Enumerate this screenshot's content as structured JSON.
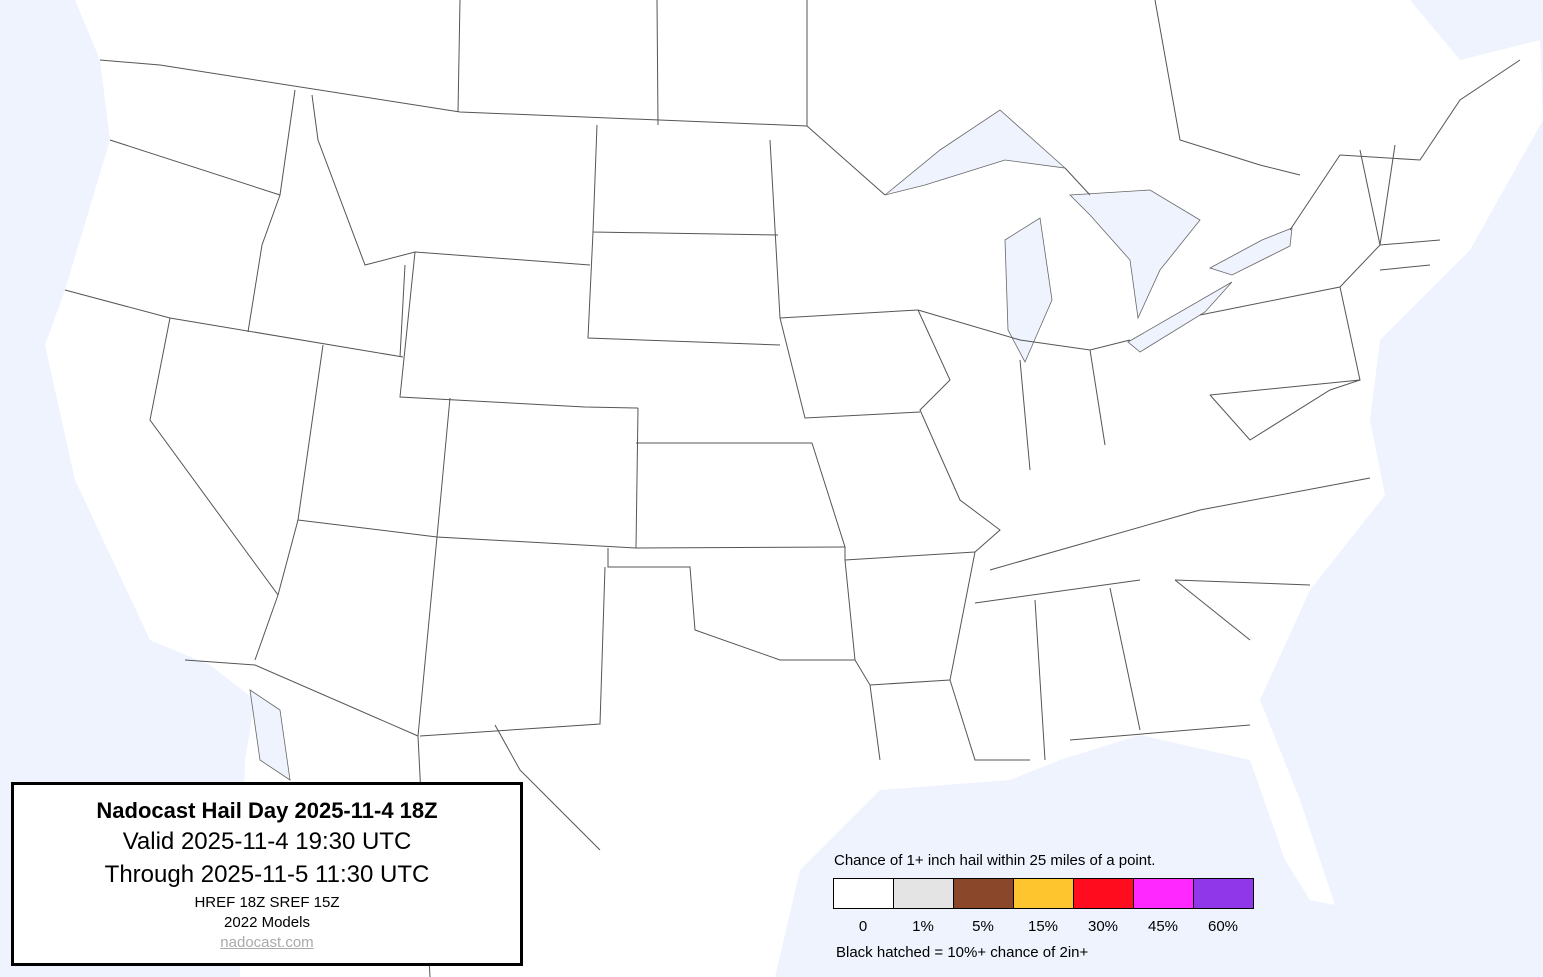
{
  "title_box": {
    "title": "Nadocast Hail Day 2025-11-4 18Z",
    "valid": "Valid 2025-11-4 19:30 UTC",
    "through": "Through 2025-11-5 11:30 UTC",
    "models_run": "HREF 18Z SREF 15Z",
    "models_version": "2022 Models",
    "website": "nadocast.com"
  },
  "legend": {
    "title": "Chance of 1+ inch hail within 25 miles of a point.",
    "bins": [
      {
        "label": "0",
        "color": "#ffffff"
      },
      {
        "label": "1%",
        "color": "#e4e4e4"
      },
      {
        "label": "5%",
        "color": "#8b472a"
      },
      {
        "label": "15%",
        "color": "#ffc52e"
      },
      {
        "label": "30%",
        "color": "#ff0d1e"
      },
      {
        "label": "45%",
        "color": "#ff28ff"
      },
      {
        "label": "60%",
        "color": "#9137ea"
      }
    ],
    "note": "Black hatched = 10%+ chance of 2in+"
  },
  "map": {
    "water_color": "#eef3fe",
    "land_color": "#ffffff",
    "border_color": "#555555"
  }
}
